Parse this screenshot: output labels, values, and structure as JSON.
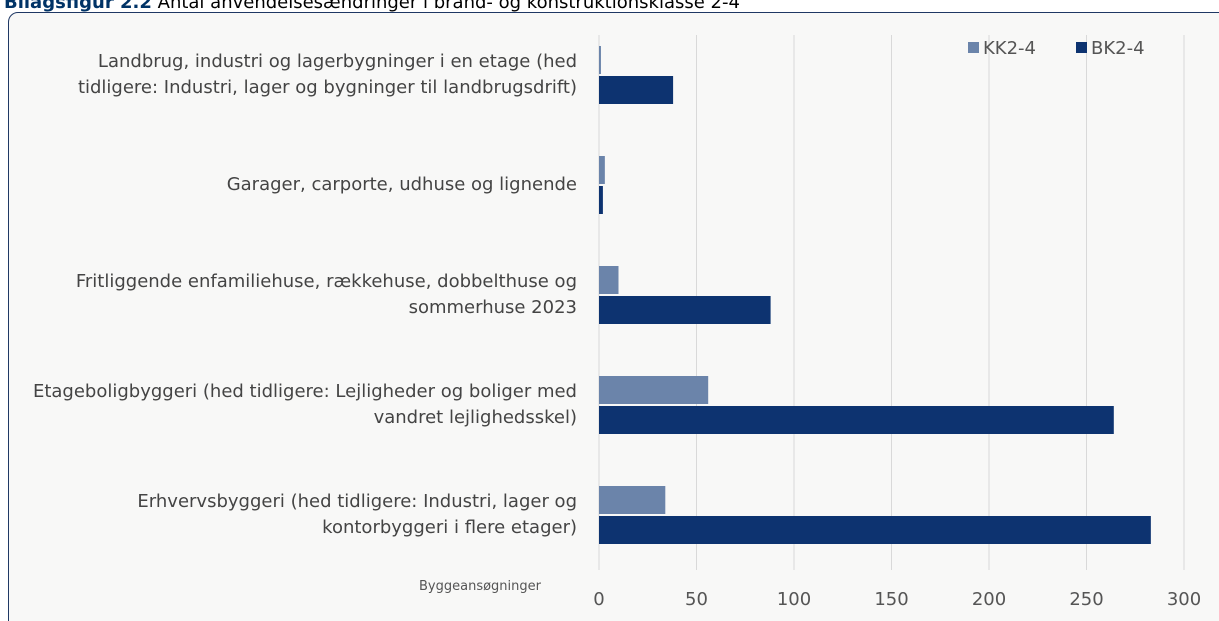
{
  "chart_data": {
    "type": "bar",
    "orientation": "horizontal",
    "title_label": "Bilagsfigur 2.2",
    "title": "Antal anvendelsesændringer i brand- og konstruktionsklasse 2-4",
    "axis_label": "Byggeansøgninger",
    "categories": [
      "Landbrug, industri og lagerbygninger i en etage (hed tidligere: Industri, lager og bygninger til landbrugsdrift)",
      "Garager, carporte, udhuse og lignende",
      "Fritliggende enfamiliehuse, rækkehuse, dobbelthuse og sommerhuse 2023",
      "Etageboligbyggeri (hed tidligere: Lejligheder og boliger med vandret lejlighedsskel)",
      "Erhvervsbyggeri (hed tidligere: Industri, lager og kontorbyggeri i flere etager)"
    ],
    "series": [
      {
        "name": "KK2-4",
        "color": "#6b84aa",
        "values": [
          1,
          3,
          10,
          56,
          34
        ]
      },
      {
        "name": "BK2-4",
        "color": "#0d3370",
        "values": [
          38,
          2,
          88,
          264,
          283
        ]
      }
    ],
    "xlim": [
      0,
      300
    ],
    "xticks": [
      0,
      50,
      100,
      150,
      200,
      250,
      300
    ],
    "grid": true,
    "legend": "top-right"
  }
}
